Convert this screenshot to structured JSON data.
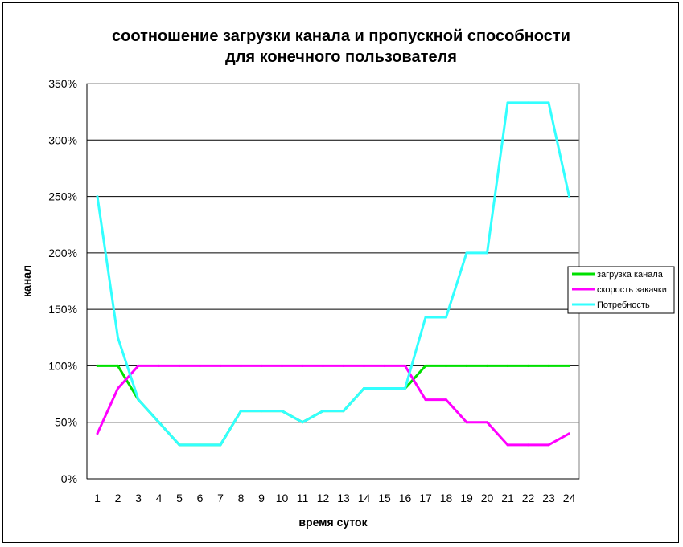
{
  "chart_data": {
    "type": "line",
    "title_lines": [
      "соотношение загрузки канала и пропускной способности",
      "для конечного пользователя"
    ],
    "xlabel": "время суток",
    "ylabel": "канал",
    "x": [
      1,
      2,
      3,
      4,
      5,
      6,
      7,
      8,
      9,
      10,
      11,
      12,
      13,
      14,
      15,
      16,
      17,
      18,
      19,
      20,
      21,
      22,
      23,
      24
    ],
    "ylim": [
      0,
      350
    ],
    "y_ticks": [
      0,
      50,
      100,
      150,
      200,
      250,
      300,
      350
    ],
    "y_tick_format": "%",
    "grid": "horizontal",
    "legend_position": "right",
    "series": [
      {
        "name": "загрузка канала",
        "color": "#00e000",
        "values": [
          100,
          100,
          70,
          50,
          30,
          30,
          30,
          60,
          60,
          60,
          50,
          60,
          60,
          80,
          80,
          80,
          100,
          100,
          100,
          100,
          100,
          100,
          100,
          100
        ]
      },
      {
        "name": "скорость закачки",
        "color": "#ff00ff",
        "values": [
          40,
          80,
          100,
          100,
          100,
          100,
          100,
          100,
          100,
          100,
          100,
          100,
          100,
          100,
          100,
          100,
          70,
          70,
          50,
          50,
          30,
          30,
          30,
          40
        ]
      },
      {
        "name": "Потребность",
        "color": "#33ffff",
        "values": [
          250,
          125,
          70,
          50,
          30,
          30,
          30,
          60,
          60,
          60,
          50,
          60,
          60,
          80,
          80,
          80,
          143,
          143,
          200,
          200,
          333,
          333,
          333,
          250
        ]
      }
    ]
  }
}
